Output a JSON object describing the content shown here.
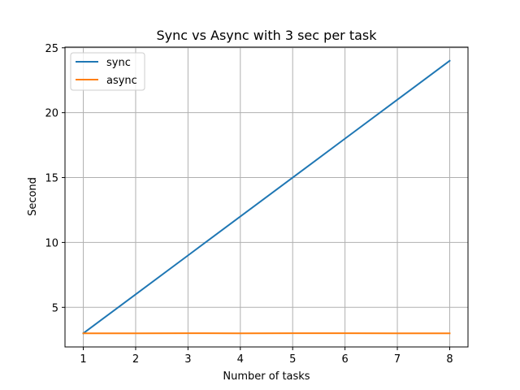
{
  "chart_data": {
    "type": "line",
    "title": "Sync vs Async with 3 sec per task",
    "xlabel": "Number of tasks",
    "ylabel": "Second",
    "x": [
      1,
      2,
      3,
      4,
      5,
      6,
      7,
      8
    ],
    "series": [
      {
        "name": "sync",
        "color": "#1f77b4",
        "values": [
          3,
          6,
          9,
          12,
          15,
          18,
          21,
          24
        ]
      },
      {
        "name": "async",
        "color": "#ff7f0e",
        "values": [
          3.0,
          3.0,
          3.01,
          3.0,
          3.01,
          3.01,
          3.0,
          3.0
        ]
      }
    ],
    "xlim": [
      0.65,
      8.35
    ],
    "ylim": [
      1.95,
      25.05
    ],
    "xticks": [
      1,
      2,
      3,
      4,
      5,
      6,
      7,
      8
    ],
    "yticks": [
      5,
      10,
      15,
      20,
      25
    ],
    "grid": true,
    "legend_position": "top-left"
  }
}
